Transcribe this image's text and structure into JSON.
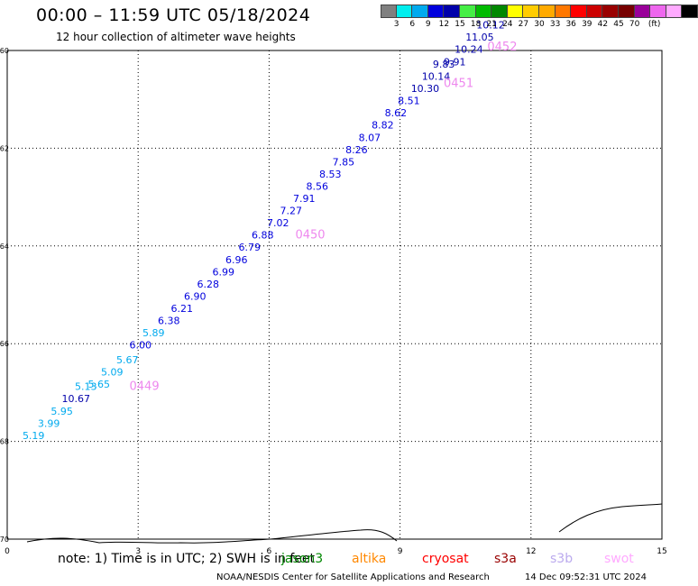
{
  "header": {
    "title": "00:00 – 11:59 UTC 05/18/2024",
    "subtitle": "12 hour collection of altimeter wave heights"
  },
  "legend": {
    "unit": "(ft)",
    "colors": [
      "#808080",
      "#00eeee",
      "#00aaee",
      "#0000dd",
      "#0000aa",
      "#44ee44",
      "#00bb00",
      "#008800",
      "#ffff00",
      "#ffcc00",
      "#ffaa00",
      "#ff7700",
      "#ff0000",
      "#cc0000",
      "#990000",
      "#770000",
      "#990099",
      "#ee66ee",
      "#ffaaff",
      "#000000"
    ],
    "labels": [
      "3",
      "6",
      "9",
      "12",
      "15",
      "18",
      "21",
      "24",
      "27",
      "30",
      "33",
      "36",
      "39",
      "42",
      "45",
      "70"
    ]
  },
  "note": "note: 1) Time is in UTC; 2) SWH is in feet",
  "satellites": [
    {
      "name": "jason3",
      "color": "#008800"
    },
    {
      "name": "altika",
      "color": "#ff8800"
    },
    {
      "name": "cryosat",
      "color": "#ff0000"
    },
    {
      "name": "s3a",
      "color": "#990000"
    },
    {
      "name": "s3b",
      "color": "#bbaaee"
    },
    {
      "name": "swot",
      "color": "#ffaaff"
    }
  ],
  "footer": {
    "credit": "NOAA/NESDIS Center for Satellite Applications and Research",
    "generated": "14 Dec 09:52:31 UTC 2024"
  },
  "chart_data": {
    "type": "scatter",
    "title": "00:00 – 11:59 UTC 05/18/2024",
    "subtitle": "12 hour collection of altimeter wave heights",
    "xlim": [
      0,
      15
    ],
    "ylim": [
      -70,
      -60
    ],
    "xticks": [
      "0",
      "3",
      "6",
      "9",
      "12",
      "15"
    ],
    "xtick_values": [
      0,
      3,
      6,
      9,
      12,
      15
    ],
    "yticks": [
      "-60",
      "-62",
      "-64",
      "-66",
      "-68",
      "-70"
    ],
    "ytick_values": [
      -60,
      -62,
      -64,
      -66,
      -68,
      -70
    ],
    "grid": true,
    "series": [
      {
        "points": [
          {
            "x": 0.35,
            "y": -67.95,
            "v": "5.19"
          },
          {
            "x": 0.7,
            "y": -67.7,
            "v": "3.99"
          },
          {
            "x": 1.0,
            "y": -67.45,
            "v": "5.95"
          },
          {
            "x": 1.25,
            "y": -67.2,
            "v": "10.67"
          },
          {
            "x": 1.55,
            "y": -66.95,
            "v": "5.13"
          },
          {
            "x": 1.85,
            "y": -66.9,
            "v": "5.65"
          },
          {
            "x": 2.15,
            "y": -66.65,
            "v": "5.09"
          },
          {
            "x": 2.5,
            "y": -66.4,
            "v": "5.67"
          },
          {
            "x": 2.8,
            "y": -66.1,
            "v": "6.00"
          },
          {
            "x": 3.1,
            "y": -65.85,
            "v": "5.89"
          },
          {
            "x": 3.45,
            "y": -65.6,
            "v": "6.38"
          },
          {
            "x": 3.75,
            "y": -65.35,
            "v": "6.21"
          },
          {
            "x": 4.05,
            "y": -65.1,
            "v": "6.90"
          },
          {
            "x": 4.35,
            "y": -64.85,
            "v": "6.28"
          },
          {
            "x": 4.7,
            "y": -64.6,
            "v": "6.99"
          },
          {
            "x": 5.0,
            "y": -64.35,
            "v": "6.96"
          },
          {
            "x": 5.3,
            "y": -64.1,
            "v": "6.79"
          },
          {
            "x": 5.6,
            "y": -63.85,
            "v": "6.88"
          },
          {
            "x": 5.95,
            "y": -63.6,
            "v": "7.02"
          },
          {
            "x": 6.25,
            "y": -63.35,
            "v": "7.27"
          },
          {
            "x": 6.55,
            "y": -63.1,
            "v": "7.91"
          },
          {
            "x": 6.85,
            "y": -62.85,
            "v": "8.56"
          },
          {
            "x": 7.15,
            "y": -62.6,
            "v": "8.53"
          },
          {
            "x": 7.45,
            "y": -62.35,
            "v": "7.85"
          },
          {
            "x": 7.75,
            "y": -62.1,
            "v": "8.26"
          },
          {
            "x": 8.05,
            "y": -61.85,
            "v": "8.07"
          },
          {
            "x": 8.35,
            "y": -61.6,
            "v": "8.82"
          },
          {
            "x": 8.65,
            "y": -61.35,
            "v": "8.62"
          },
          {
            "x": 8.95,
            "y": -61.1,
            "v": "8.51"
          },
          {
            "x": 9.25,
            "y": -60.85,
            "v": "10.30"
          },
          {
            "x": 9.5,
            "y": -60.6,
            "v": "10.14"
          },
          {
            "x": 9.75,
            "y": -60.35,
            "v": "9.83"
          },
          {
            "x": 10.0,
            "y": -60.3,
            "v": "9.91"
          },
          {
            "x": 10.25,
            "y": -60.05,
            "v": "10.24"
          },
          {
            "x": 10.5,
            "y": -59.8,
            "v": "11.05"
          },
          {
            "x": 10.75,
            "y": -59.55,
            "v": "10.12"
          }
        ]
      }
    ],
    "pass_labels": [
      {
        "text": "0449",
        "x": 2.8,
        "y": -66.95
      },
      {
        "text": "0450",
        "x": 6.6,
        "y": -63.85
      },
      {
        "text": "0451",
        "x": 10.0,
        "y": -60.75
      },
      {
        "text": "0452",
        "x": 11.0,
        "y": -60.0
      }
    ]
  }
}
